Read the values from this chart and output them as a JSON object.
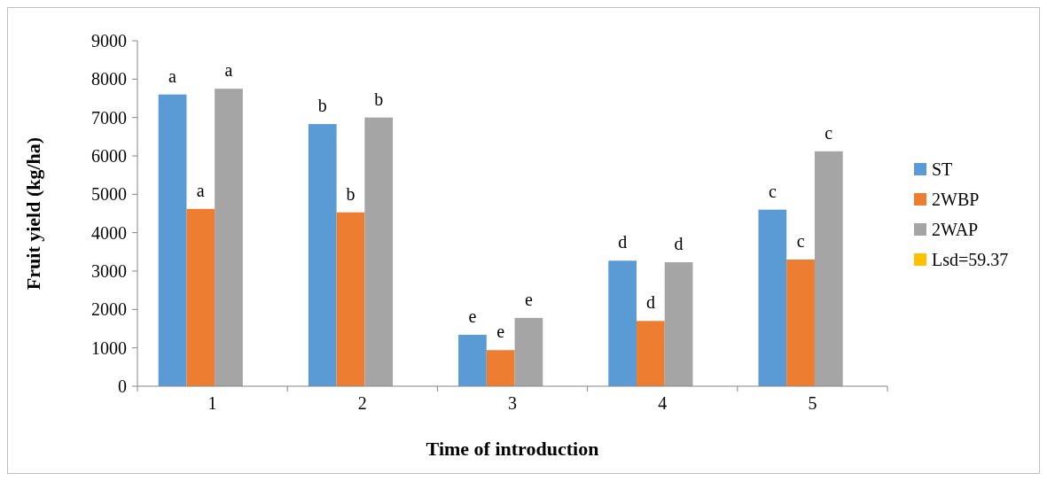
{
  "chart_data": {
    "type": "bar",
    "xlabel": "Time of introduction",
    "ylabel": "Fruit yield (kg/ha)",
    "categories": [
      "1",
      "2",
      "3",
      "4",
      "5"
    ],
    "ylim": [
      0,
      9000
    ],
    "yticks": [
      0,
      1000,
      2000,
      3000,
      4000,
      5000,
      6000,
      7000,
      8000,
      9000
    ],
    "grid": false,
    "legend": "right",
    "series": [
      {
        "name": "ST",
        "color": "#5b9bd5",
        "values": [
          7600,
          6830,
          1340,
          3270,
          4600
        ],
        "value_labels": [
          "a",
          "b",
          "e",
          "d",
          "c"
        ]
      },
      {
        "name": "2WBP",
        "color": "#ed7d31",
        "values": [
          4620,
          4530,
          940,
          1700,
          3300
        ],
        "value_labels": [
          "a",
          "b",
          "e",
          "d",
          "c"
        ]
      },
      {
        "name": "2WAP",
        "color": "#a5a5a5",
        "values": [
          7750,
          7000,
          1780,
          3230,
          6120
        ],
        "value_labels": [
          "a",
          "b",
          "e",
          "d",
          "c"
        ]
      },
      {
        "name": "Lsd=59.37",
        "color": "#ffc000",
        "values": [
          null,
          null,
          null,
          null,
          null
        ]
      }
    ]
  }
}
